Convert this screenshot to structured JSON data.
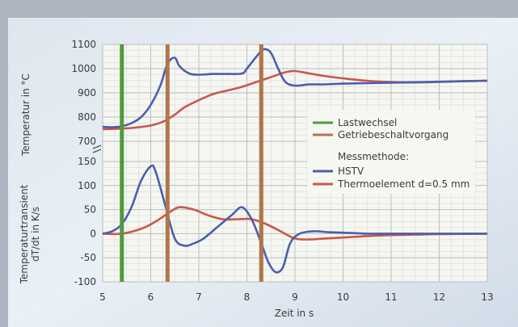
{
  "chart_data": {
    "type": "line",
    "xlabel": "Zeit in s",
    "x_ticks": [
      "5",
      "6",
      "7",
      "8",
      "9",
      "10",
      "11",
      "12",
      "13"
    ],
    "xlim": [
      5,
      13
    ],
    "top_panel": {
      "ylabel": "Temperatur in °C",
      "ylim": [
        700,
        1100
      ],
      "y_ticks": [
        "1100",
        "1000",
        "900",
        "800",
        "700"
      ],
      "series": [
        {
          "name": "HSTV",
          "color": "#4a5fae",
          "x": [
            5.0,
            5.2,
            5.4,
            5.6,
            5.8,
            6.0,
            6.2,
            6.35,
            6.5,
            6.6,
            6.8,
            7.0,
            7.3,
            7.6,
            7.9,
            8.0,
            8.2,
            8.35,
            8.5,
            8.65,
            8.8,
            9.0,
            9.3,
            9.6,
            10.0,
            10.5,
            11.0,
            11.5,
            12.0,
            12.5,
            13.0
          ],
          "y": [
            760,
            758,
            762,
            775,
            800,
            850,
            930,
            1020,
            1045,
            1010,
            980,
            975,
            978,
            978,
            980,
            1000,
            1050,
            1080,
            1065,
            1000,
            945,
            930,
            935,
            935,
            938,
            940,
            942,
            944,
            946,
            948,
            950
          ]
        },
        {
          "name": "Thermoelement d=0.5 mm",
          "color": "#c9574c",
          "x": [
            5.0,
            5.3,
            5.6,
            5.9,
            6.1,
            6.3,
            6.5,
            6.7,
            7.0,
            7.3,
            7.6,
            7.9,
            8.2,
            8.5,
            8.8,
            9.0,
            9.3,
            9.6,
            10.0,
            10.5,
            11.0,
            11.5,
            12.0,
            12.5,
            13.0
          ],
          "y": [
            750,
            752,
            755,
            762,
            770,
            785,
            810,
            840,
            870,
            895,
            910,
            925,
            945,
            965,
            985,
            990,
            980,
            970,
            960,
            950,
            945,
            943,
            945,
            948,
            950
          ]
        }
      ]
    },
    "bottom_panel": {
      "ylabel": [
        "Temperaturtransient",
        "dT/dt in K/s"
      ],
      "ylim": [
        -100,
        150
      ],
      "y_ticks": [
        "150",
        "100",
        "50",
        "0",
        "-50",
        "-100"
      ],
      "series": [
        {
          "name": "HSTV",
          "color": "#4a5fae",
          "x": [
            5.0,
            5.2,
            5.4,
            5.6,
            5.8,
            6.0,
            6.1,
            6.3,
            6.5,
            6.7,
            6.9,
            7.1,
            7.4,
            7.7,
            7.9,
            8.1,
            8.3,
            8.45,
            8.6,
            8.75,
            8.9,
            9.1,
            9.4,
            9.7,
            10.0,
            10.5,
            11.0,
            12.0,
            13.0
          ],
          "y": [
            0,
            5,
            20,
            55,
            110,
            140,
            130,
            60,
            -10,
            -25,
            -20,
            -10,
            15,
            40,
            55,
            30,
            -20,
            -60,
            -80,
            -70,
            -20,
            0,
            5,
            3,
            2,
            0,
            0,
            0,
            0
          ]
        },
        {
          "name": "Thermoelement d=0.5 mm",
          "color": "#c9574c",
          "x": [
            5.0,
            5.4,
            5.8,
            6.1,
            6.4,
            6.6,
            6.9,
            7.2,
            7.5,
            7.8,
            8.1,
            8.4,
            8.7,
            9.0,
            9.3,
            9.6,
            10.0,
            10.5,
            11.0,
            11.5,
            12.0,
            13.0
          ],
          "y": [
            0,
            0,
            10,
            25,
            45,
            55,
            50,
            38,
            30,
            30,
            30,
            20,
            5,
            -10,
            -12,
            -10,
            -8,
            -5,
            -3,
            -2,
            -1,
            0
          ]
        }
      ]
    },
    "events": [
      {
        "name": "Lastwechsel",
        "x": 5.4,
        "color": "#4f9a3c"
      },
      {
        "name": "Getriebeschaltvorgang",
        "x": 6.35,
        "color": "#b0764a"
      },
      {
        "name": "Getriebeschaltvorgang",
        "x": 8.3,
        "color": "#b0764a"
      }
    ],
    "legend": {
      "position": "center-right",
      "entries": [
        {
          "label": "Lastwechsel",
          "color": "#4f9a3c"
        },
        {
          "label": "Getriebeschaltvorgang",
          "color": "#b0764a"
        }
      ],
      "section_title": "Messmethode:",
      "method_entries": [
        {
          "label": "HSTV",
          "color": "#4a5fae"
        },
        {
          "label": "Thermoelement d=0.5 mm",
          "color": "#c9574c"
        }
      ]
    },
    "grid": true
  }
}
